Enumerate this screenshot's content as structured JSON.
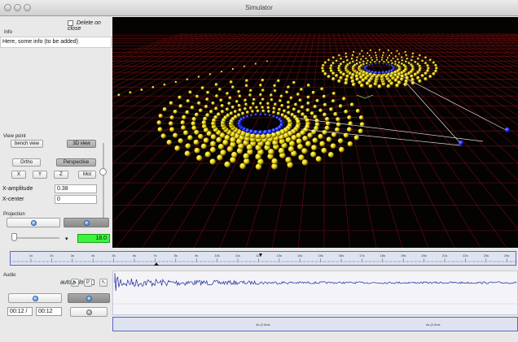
{
  "window": {
    "title": "Simulator"
  },
  "left_panel": {
    "delete_on_close": "Delete on close",
    "info_label": "Info",
    "info_text": "Here, some info (to be added)",
    "viewpoint_label": "View point",
    "bench_view": "bench view",
    "view_3d": "3D view",
    "ortho": "Ortho",
    "perspective": "Perspective",
    "x_button": "X",
    "y_button": "Y",
    "z_button": "Z",
    "mot_button": "Mot",
    "x_amplitude_label": "X-amplitude",
    "x_amplitude_value": "0.38",
    "x_center_label": "X-center",
    "x_center_value": "0",
    "projection_label": "Projection",
    "projection_value": "18.0",
    "dropdown_symbol": "▾",
    "dots": "."
  },
  "timeline": {
    "tick_labels": [
      "1s",
      "2s",
      "3s",
      "4s",
      "5s",
      "6s",
      "7s",
      "8s",
      "9s",
      "10s",
      "11s",
      "12s",
      "13s",
      "14s",
      "15s",
      "16s",
      "17s",
      "18s",
      "19s",
      "20s",
      "21s",
      "22s",
      "23s",
      "24s",
      "25s"
    ]
  },
  "audio": {
    "label": "Audio",
    "auto_follow": "auto follow",
    "speaker_icon": "🔈",
    "p_icon": "P",
    "cursor_icon": "↖",
    "time_current": "00:12 /",
    "time_total": "00:12",
    "marker_labels": [
      "4s (2.0ms",
      "4s (2.0ms"
    ]
  },
  "colors": {
    "sphere_yellow": "#e8d400",
    "sphere_blue": "#1b2cff",
    "grid_red": "#7a1010",
    "green_display": "#3cf43c",
    "accent_blue": "#5a66c8"
  }
}
